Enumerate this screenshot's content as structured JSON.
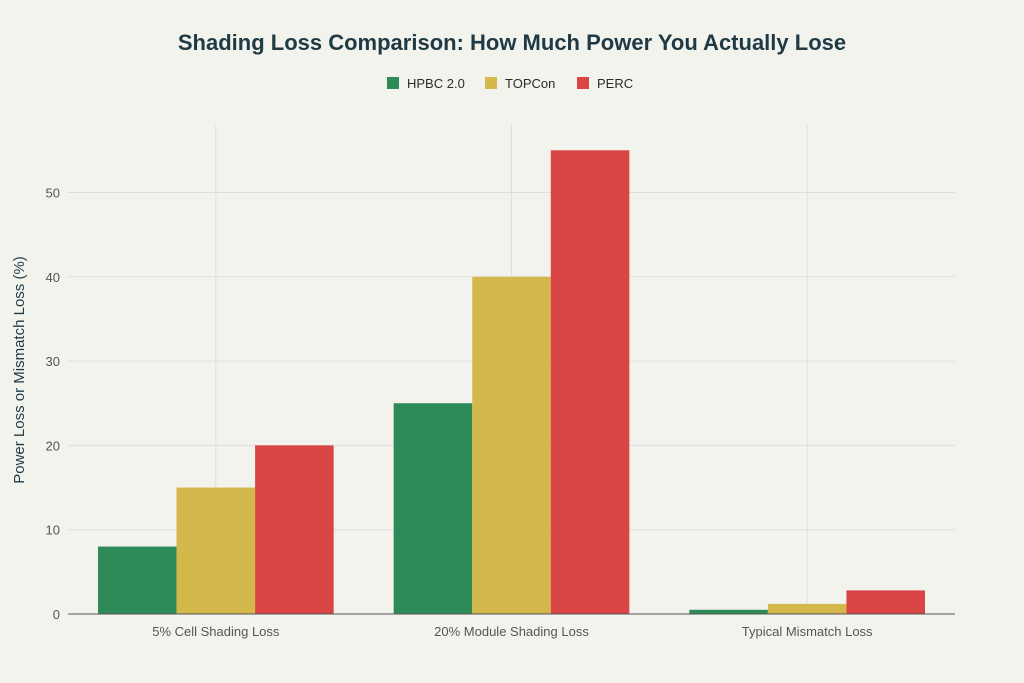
{
  "chart_data": {
    "type": "bar",
    "title": "Shading Loss Comparison: How Much Power You Actually Lose",
    "xlabel": "",
    "ylabel": "Power Loss or Mismatch Loss (%)",
    "categories": [
      "5% Cell Shading Loss",
      "20% Module Shading Loss",
      "Typical Mismatch Loss"
    ],
    "series": [
      {
        "name": "HPBC 2.0",
        "color": "#2e8b57",
        "values": [
          8,
          25,
          0.5
        ]
      },
      {
        "name": "TOPCon",
        "color": "#d4b84c",
        "values": [
          15,
          40,
          1.2
        ]
      },
      {
        "name": "PERC",
        "color": "#d94444",
        "values": [
          20,
          55,
          2.8
        ]
      }
    ],
    "ylim": [
      0,
      58
    ],
    "yticks": [
      0,
      10,
      20,
      30,
      40,
      50
    ],
    "grid": true,
    "legend": "top-center"
  }
}
